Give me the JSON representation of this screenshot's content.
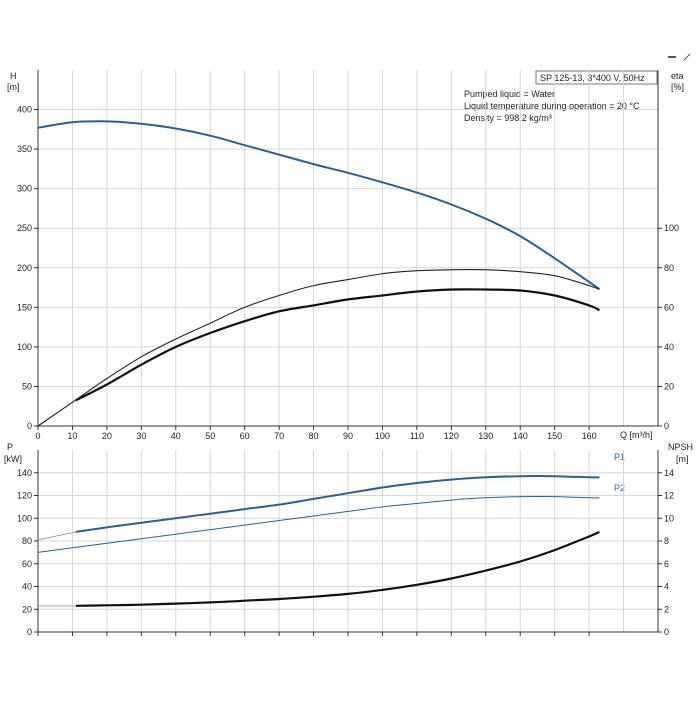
{
  "chart_data": [
    {
      "type": "line",
      "panel": "head-efficiency",
      "x_label": "Q [m³/h]",
      "x_ticks": [
        0,
        10,
        20,
        30,
        40,
        50,
        60,
        70,
        80,
        90,
        100,
        110,
        120,
        130,
        140,
        150,
        160
      ],
      "xlim": [
        0,
        180
      ],
      "left_axis": {
        "label": "H",
        "unit": "[m]",
        "ylim": [
          0,
          450
        ],
        "ticks": [
          0,
          50,
          100,
          150,
          200,
          250,
          300,
          350,
          400
        ]
      },
      "right_axis": {
        "label": "eta",
        "unit": "[%]",
        "ylim": [
          0,
          180
        ],
        "ticks": [
          0,
          20,
          40,
          60,
          80,
          100
        ]
      },
      "info_title": "SP 125-13, 3*400 V, 50Hz",
      "info_lines": [
        "Pumped liquid = Water",
        "Liquid temperature during operation = 20 °C",
        "Density = 998.2 kg/m³"
      ],
      "grid": true,
      "series": [
        {
          "key": "head",
          "axis": "left",
          "color": "#2a6096",
          "x": [
            0,
            10,
            20,
            30,
            40,
            50,
            60,
            70,
            80,
            90,
            100,
            110,
            120,
            130,
            140,
            150,
            160,
            163
          ],
          "values": [
            377,
            384,
            385,
            382,
            376,
            367,
            355,
            343,
            331,
            320,
            308,
            295,
            280,
            262,
            240,
            212,
            182,
            173
          ]
        },
        {
          "key": "eta_thin",
          "axis": "right",
          "color": "#222222",
          "x": [
            0,
            10,
            20,
            30,
            40,
            50,
            60,
            70,
            80,
            90,
            100,
            110,
            120,
            130,
            140,
            150,
            160,
            163
          ],
          "values": [
            0,
            12,
            24,
            35,
            44,
            52,
            60,
            66,
            71,
            74,
            77,
            78.5,
            79,
            79,
            78,
            76,
            71,
            69
          ]
        },
        {
          "key": "eta_thick",
          "axis": "right",
          "color": "#111111",
          "x": [
            11,
            20,
            30,
            40,
            50,
            60,
            70,
            80,
            90,
            100,
            110,
            120,
            130,
            140,
            150,
            160,
            163
          ],
          "values": [
            13,
            21,
            31,
            40,
            47,
            53,
            58,
            61,
            64,
            66,
            68,
            69,
            69,
            68.5,
            66,
            61,
            58.5
          ]
        }
      ]
    },
    {
      "type": "line",
      "panel": "power-npsh",
      "x_ticks": [
        0,
        10,
        20,
        30,
        40,
        50,
        60,
        70,
        80,
        90,
        100,
        110,
        120,
        130,
        140,
        150,
        160
      ],
      "xlim": [
        0,
        180
      ],
      "left_axis": {
        "label": "P",
        "unit": "[kW]",
        "ylim": [
          0,
          160
        ],
        "ticks": [
          0,
          20,
          40,
          60,
          80,
          100,
          120,
          140
        ]
      },
      "right_axis": {
        "label": "NPSH",
        "unit": "[m]",
        "ylim": [
          0,
          16
        ],
        "ticks": [
          0,
          2,
          4,
          6,
          8,
          10,
          12,
          14
        ]
      },
      "grid": true,
      "series": [
        {
          "name": "P1",
          "axis": "left",
          "color": "#2a6096",
          "x": [
            11,
            20,
            30,
            40,
            50,
            60,
            70,
            80,
            90,
            100,
            110,
            120,
            130,
            140,
            150,
            160,
            163
          ],
          "values": [
            88,
            92,
            96,
            100,
            104,
            108,
            112,
            117,
            122,
            127,
            131,
            134,
            136,
            137,
            137,
            136,
            136
          ]
        },
        {
          "name": "P2",
          "axis": "left",
          "color": "#2a6096",
          "x": [
            0,
            10,
            20,
            30,
            40,
            50,
            60,
            70,
            80,
            90,
            100,
            110,
            120,
            130,
            140,
            150,
            160,
            163
          ],
          "values": [
            70,
            74,
            78,
            82,
            86,
            90,
            94,
            98,
            102,
            106,
            110,
            113,
            116,
            118,
            119,
            119,
            118,
            118
          ]
        },
        {
          "key": "npsh",
          "axis": "right",
          "color": "#111111",
          "x": [
            11,
            20,
            30,
            40,
            50,
            60,
            70,
            80,
            90,
            100,
            110,
            120,
            130,
            140,
            150,
            160,
            163
          ],
          "values": [
            2.3,
            2.35,
            2.4,
            2.5,
            2.6,
            2.75,
            2.9,
            3.1,
            3.35,
            3.7,
            4.15,
            4.7,
            5.4,
            6.2,
            7.2,
            8.4,
            8.8
          ]
        }
      ]
    }
  ]
}
